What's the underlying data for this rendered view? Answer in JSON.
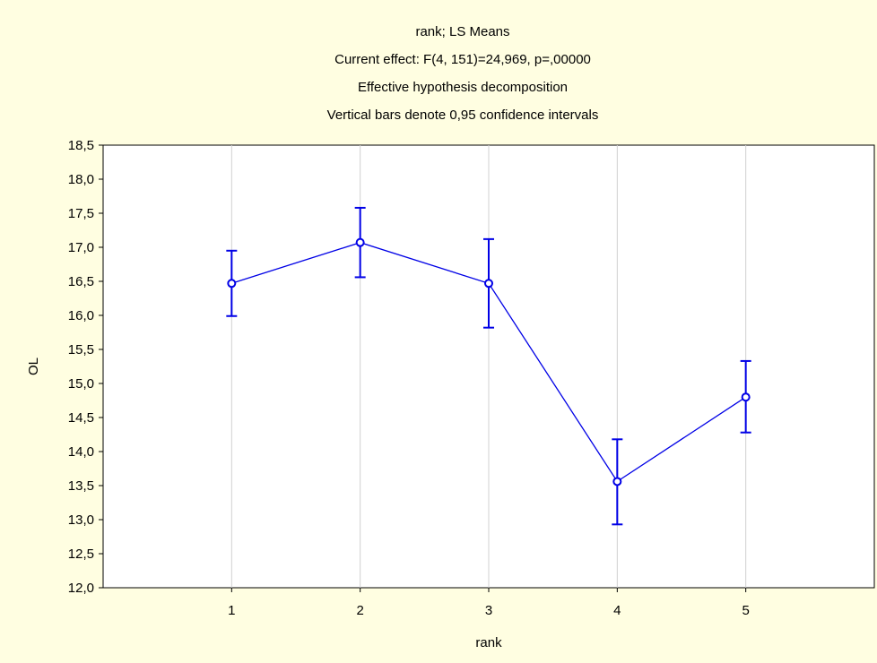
{
  "chart_data": {
    "type": "line",
    "title_lines": [
      "rank; LS Means",
      "Current effect: F(4, 151)=24,969, p=,00000",
      "Effective hypothesis decomposition",
      "Vertical bars denote 0,95 confidence intervals"
    ],
    "xlabel": "rank",
    "ylabel": "OL",
    "x": [
      1,
      2,
      3,
      4,
      5
    ],
    "x_tick_labels": [
      "1",
      "2",
      "3",
      "4",
      "5"
    ],
    "xlim": [
      0,
      6
    ],
    "ylim": [
      12.0,
      18.5
    ],
    "y_ticks": [
      12.0,
      12.5,
      13.0,
      13.5,
      14.0,
      14.5,
      15.0,
      15.5,
      16.0,
      16.5,
      17.0,
      17.5,
      18.0,
      18.5
    ],
    "y_tick_labels": [
      "12,0",
      "12,5",
      "13,0",
      "13,5",
      "14,0",
      "14,5",
      "15,0",
      "15,5",
      "16,0",
      "16,5",
      "17,0",
      "17,5",
      "18,0",
      "18,5"
    ],
    "series": [
      {
        "values": [
          16.47,
          17.07,
          16.47,
          13.56,
          14.8
        ],
        "ci_lower": [
          15.99,
          16.56,
          15.82,
          12.93,
          14.28
        ],
        "ci_upper": [
          16.95,
          17.58,
          17.12,
          14.18,
          15.33
        ]
      }
    ],
    "grid": "vertical",
    "colors": {
      "series": "#0000e6",
      "background": "#fffee1",
      "grid": "#d0d0d0"
    }
  }
}
